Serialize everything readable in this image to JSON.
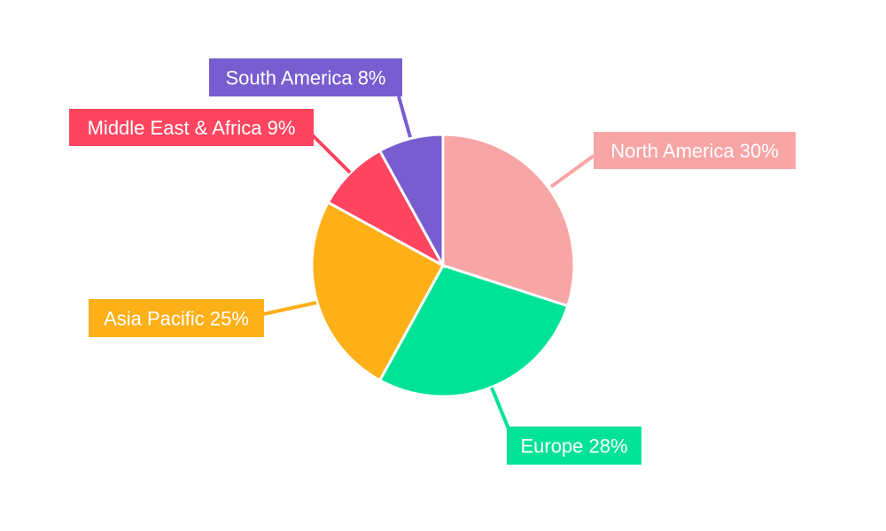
{
  "chart_data": {
    "type": "pie",
    "start_angle": "12 o'clock, clockwise",
    "slices": [
      {
        "label": "North America",
        "value": 30,
        "text": "North America 30%",
        "color": "#F8A5A5"
      },
      {
        "label": "Europe",
        "value": 28,
        "text": "Europe 28%",
        "color": "#00E396"
      },
      {
        "label": "Asia Pacific",
        "value": 25,
        "text": "Asia Pacific 25%",
        "color": "#FEB019"
      },
      {
        "label": "Middle East & Africa",
        "value": 9,
        "text": "Middle East & Africa 9%",
        "color": "#FF4560"
      },
      {
        "label": "South America",
        "value": 8,
        "text": "South America 8%",
        "color": "#775DD0"
      }
    ],
    "legend": "none",
    "data_labels": "outside boxes with leader lines"
  }
}
